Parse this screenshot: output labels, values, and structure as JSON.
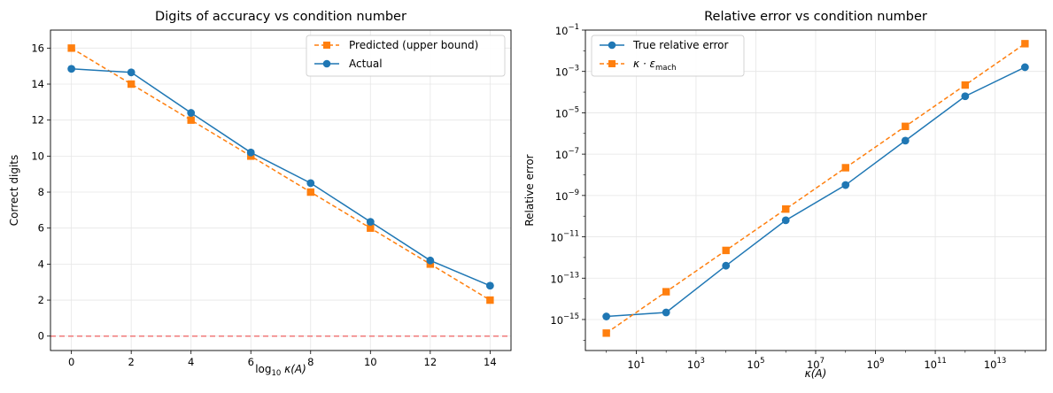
{
  "chart_data": [
    {
      "type": "line",
      "title": "Digits of accuracy vs condition number",
      "xlabel_base": "log",
      "xlabel_sub": "10",
      "xlabel_rest": " κ(A)",
      "ylabel": "Correct digits",
      "xlim": [
        -0.7,
        14.7
      ],
      "ylim": [
        -0.8,
        17
      ],
      "xticks": [
        0,
        2,
        4,
        6,
        8,
        10,
        12,
        14
      ],
      "yticks": [
        0,
        2,
        4,
        6,
        8,
        10,
        12,
        14,
        16
      ],
      "xtick_labels": [
        "0",
        "2",
        "4",
        "6",
        "8",
        "10",
        "12",
        "14"
      ],
      "ytick_labels": [
        "0",
        "2",
        "4",
        "6",
        "8",
        "10",
        "12",
        "14",
        "16"
      ],
      "grid": true,
      "legend_position": "top-right",
      "hline": {
        "y": 0,
        "color": "#f07a7a",
        "style": "dashed"
      },
      "x": [
        0,
        2,
        4,
        6,
        8,
        10,
        12,
        14
      ],
      "series": [
        {
          "name": "Predicted (upper bound)",
          "color": "#ff7f0e",
          "marker": "square",
          "style": "dashed",
          "values": [
            16,
            14,
            12,
            10,
            8,
            6,
            4,
            2
          ]
        },
        {
          "name": "Actual",
          "color": "#1f77b4",
          "marker": "circle",
          "style": "solid",
          "values": [
            14.85,
            14.65,
            12.4,
            10.2,
            8.5,
            6.35,
            4.2,
            2.8
          ]
        }
      ]
    },
    {
      "type": "line",
      "title": "Relative error vs condition number",
      "xlabel": "κ(A)",
      "ylabel": "Relative error",
      "xscale": "log",
      "yscale": "log",
      "xlim_log10": [
        -0.7,
        14.7
      ],
      "ylim_log10": [
        -16.5,
        -1
      ],
      "xticks_log10": [
        1,
        3,
        5,
        7,
        9,
        11,
        13
      ],
      "yticks_log10": [
        -15,
        -13,
        -11,
        -9,
        -7,
        -5,
        -3,
        -1
      ],
      "xtick_exponents": [
        "1",
        "3",
        "5",
        "7",
        "9",
        "11",
        "13"
      ],
      "ytick_exponents": [
        "−15",
        "−13",
        "−11",
        "−9",
        "−7",
        "−5",
        "−3",
        "−1"
      ],
      "tick_base": "10",
      "grid": true,
      "legend_position": "top-left",
      "x": [
        1,
        100,
        10000,
        1000000,
        100000000,
        10000000000,
        1000000000000,
        100000000000000
      ],
      "series": [
        {
          "name": "True relative error",
          "color": "#1f77b4",
          "marker": "circle",
          "style": "solid",
          "values": [
            1.4e-15,
            2.2e-15,
            4e-13,
            6.3e-11,
            3.2e-09,
            4.5e-07,
            6.3e-05,
            0.0016
          ]
        },
        {
          "name_main": "κ · ε",
          "name_sub": "mach",
          "color": "#ff7f0e",
          "marker": "square",
          "style": "dashed",
          "values": [
            2.2e-16,
            2.2e-14,
            2.2e-12,
            2.2e-10,
            2.2e-08,
            2.2e-06,
            0.00022,
            0.022
          ]
        }
      ]
    }
  ]
}
